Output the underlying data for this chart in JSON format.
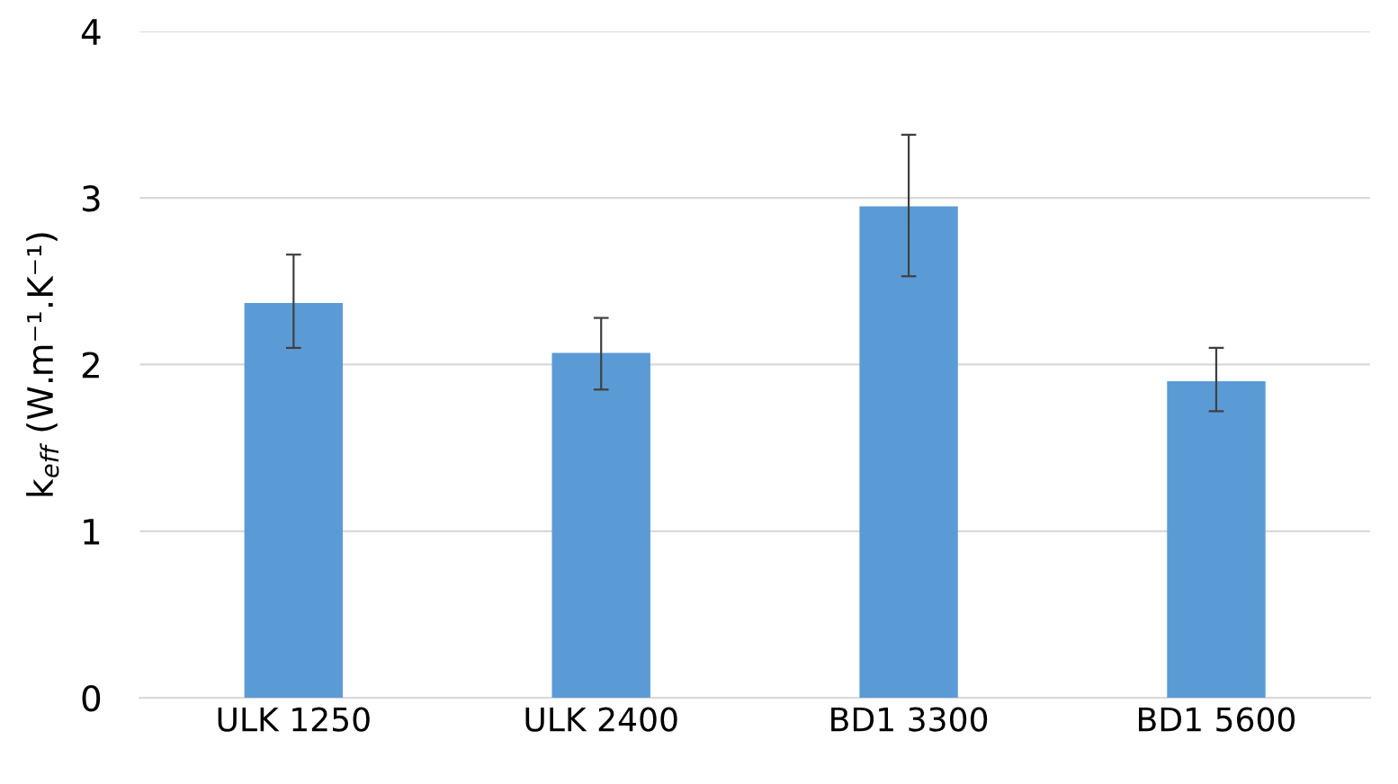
{
  "chart_data": {
    "type": "bar",
    "ylabel": "k$_{eff}$ (W.m⁻¹.K⁻¹)",
    "categories": [
      "ULK 1250",
      "ULK 2400",
      "BD1 3300",
      "BD1 5600"
    ],
    "values": [
      2.37,
      2.07,
      2.95,
      1.9
    ],
    "errors": [
      [
        2.1,
        2.66
      ],
      [
        1.85,
        2.28
      ],
      [
        2.53,
        3.38
      ],
      [
        1.72,
        2.1
      ]
    ],
    "color": "#5b9bd5",
    "ylim": [
      0,
      4
    ],
    "yticks": [
      0,
      1,
      2,
      3,
      4
    ],
    "grid": "y"
  }
}
